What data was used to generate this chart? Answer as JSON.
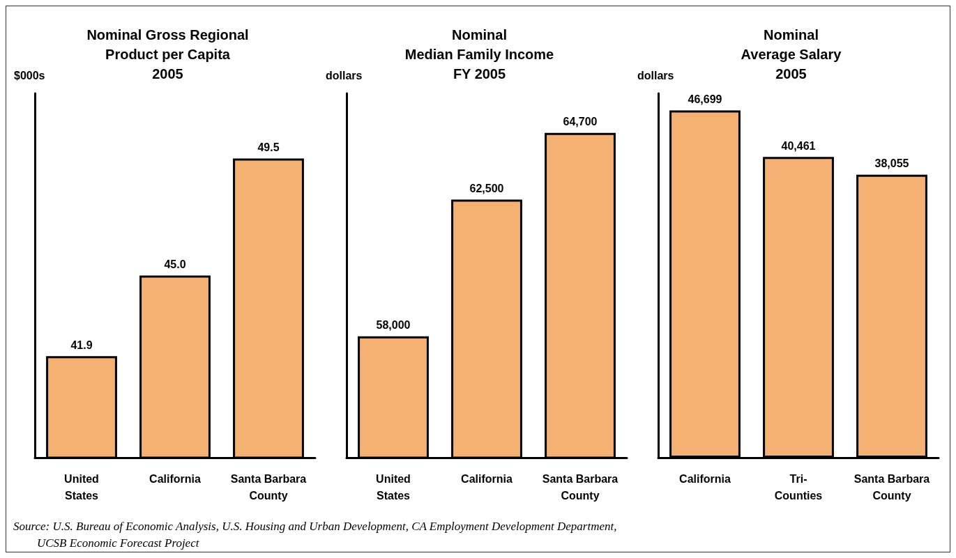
{
  "chart_data": [
    {
      "type": "bar",
      "title": "Nominal Gross Regional\nProduct per Capita\n2005",
      "ylabel": "$000s",
      "categories": [
        "United States",
        "California",
        "Santa Barbara County"
      ],
      "values": [
        41.9,
        45.0,
        49.5
      ],
      "value_labels": [
        "41.9",
        "45.0",
        "49.5"
      ],
      "color": "#f5b172",
      "ylim": [
        38,
        52
      ],
      "tick_labels": "x"
    },
    {
      "type": "bar",
      "title": "Nominal\nMedian Family Income\nFY 2005",
      "ylabel": "dollars",
      "categories": [
        "United States",
        "California",
        "Santa Barbara County"
      ],
      "values": [
        58000,
        62500,
        64700
      ],
      "value_labels": [
        "58,000",
        "62,500",
        "64,700"
      ],
      "color": "#f5b172",
      "ylim": [
        54000,
        66000
      ],
      "tick_labels": "x"
    },
    {
      "type": "bar",
      "title": "Nominal\nAverage Salary\n2005",
      "ylabel": "dollars",
      "categories": [
        "California",
        "Tri-Counties",
        "Santa Barbara County"
      ],
      "values": [
        46699,
        40461,
        38055
      ],
      "value_labels": [
        "46,699",
        "40,461",
        "38,055"
      ],
      "color": "#f5b172",
      "ylim": [
        0,
        49000
      ],
      "tick_labels": "x",
      "annotations": [
        "Source: U.S. Bureau of Economic Analysis, U.S. Housing and Urban Development, CA Employment Development Department,\n        UCSB Economic Forecast Project"
      ]
    }
  ]
}
